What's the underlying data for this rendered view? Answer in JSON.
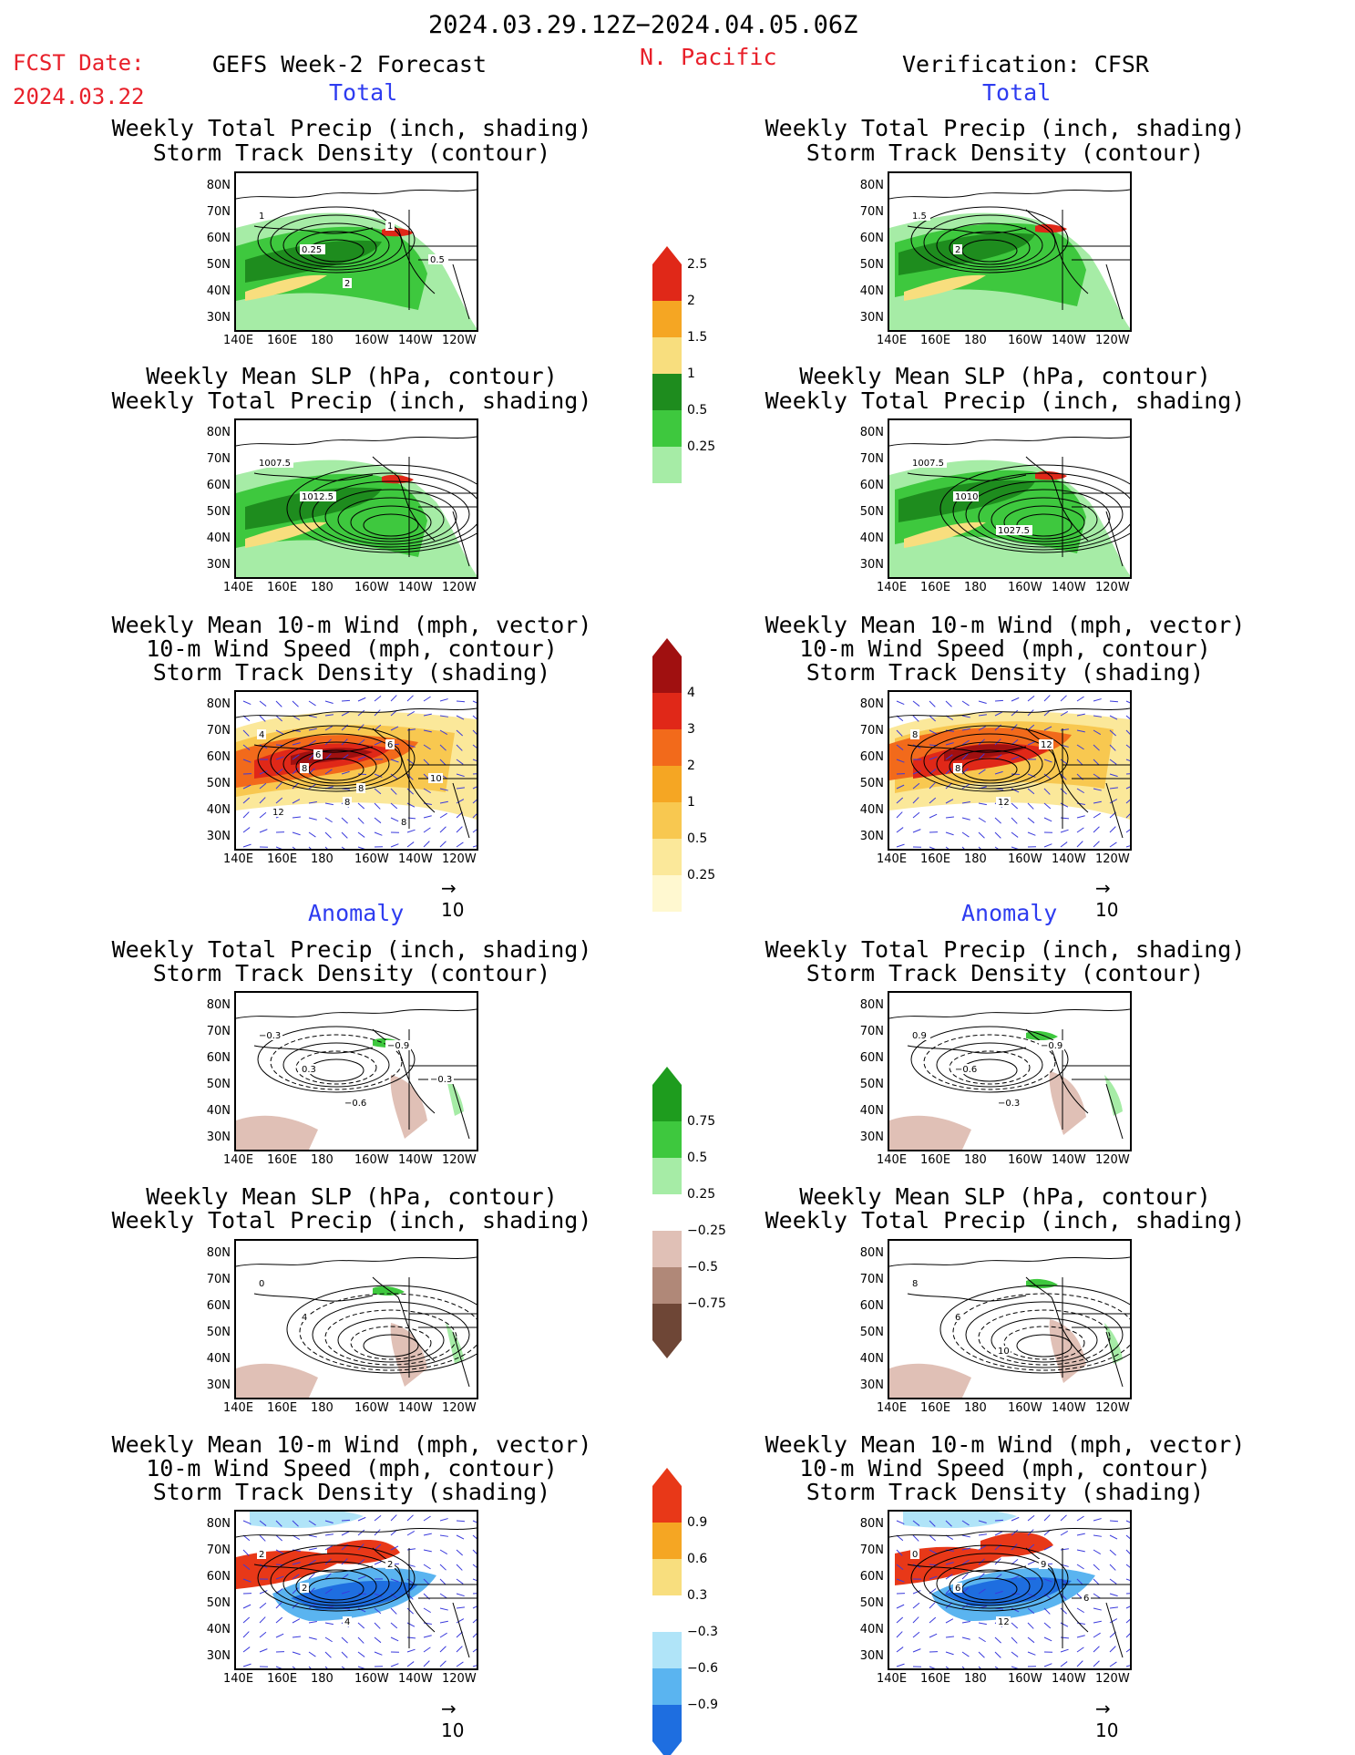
{
  "header": {
    "date_range": "2024.03.29.12Z−2024.04.05.06Z",
    "fcst_label": "FCST Date:",
    "fcst_date": "2024.03.22",
    "left_title": "GEFS Week-2 Forecast",
    "region": "N. Pacific",
    "right_title": "Verification: CFSR"
  },
  "sections": {
    "total": "Total",
    "anomaly": "Anomaly"
  },
  "panel_titles": {
    "precip_track": [
      "Weekly Total Precip (inch, shading)",
      "Storm Track Density (contour)"
    ],
    "slp_precip": [
      "Weekly Mean SLP (hPa, contour)",
      "Weekly Total Precip (inch, shading)"
    ],
    "wind_track": [
      "Weekly Mean 10-m Wind (mph, vector)",
      "10-m Wind Speed (mph, contour)",
      "Storm Track Density (shading)"
    ]
  },
  "axes": {
    "lat_labels": [
      "80N",
      "70N",
      "60N",
      "50N",
      "40N",
      "30N"
    ],
    "lon_labels": [
      "140E",
      "160E",
      "180",
      "160W",
      "140W",
      "120W"
    ]
  },
  "vector_ref": "10",
  "colorbars": {
    "precip_total": {
      "labels": [
        "2.5",
        "2",
        "1.5",
        "1",
        "0.5",
        "0.25"
      ],
      "colors": [
        "#e02818",
        "#f5a623",
        "#f8de7e",
        "#1e8c1e",
        "#3ec83e",
        "#a6eca6"
      ]
    },
    "track_total": {
      "labels": [
        "4",
        "3",
        "2",
        "1",
        "0.5",
        "0.25"
      ],
      "colors": [
        "#a01010",
        "#e02818",
        "#f26a1b",
        "#f5a623",
        "#f8c850",
        "#fbe89a",
        "#fff8d0"
      ]
    },
    "precip_anom": {
      "labels": [
        "0.75",
        "0.5",
        "0.25",
        "−0.25",
        "−0.5",
        "−0.75"
      ],
      "colors": [
        "#1e9c1e",
        "#3ec83e",
        "#a6eca6",
        "#ffffff",
        "#e0c0b6",
        "#b08878",
        "#6e4636"
      ]
    },
    "track_anom": {
      "labels": [
        "0.9",
        "0.6",
        "0.3",
        "−0.3",
        "−0.6",
        "−0.9"
      ],
      "colors": [
        "#e83818",
        "#f5a623",
        "#f8de7e",
        "#ffffff",
        "#b0e4f8",
        "#5ab4f0",
        "#1e6ee0"
      ]
    }
  },
  "contour_labels": {
    "f_precip_total": [
      "1",
      "0.25",
      "2",
      "1",
      "0.5"
    ],
    "f_slp_total": [
      "1007.5",
      "1012.5"
    ],
    "f_wind_total": [
      "4",
      "8",
      "8",
      "6",
      "10",
      "12",
      "6",
      "8",
      "8"
    ],
    "v_precip_total": [
      "1.5",
      "2"
    ],
    "v_slp_total": [
      "1007.5",
      "1010",
      "1027.5"
    ],
    "v_wind_total": [
      "8",
      "8",
      "12",
      "12"
    ],
    "f_precip_anom": [
      "−0.3",
      "0.3",
      "−0.6",
      "−0.9",
      "−0.3"
    ],
    "f_slp_anom": [
      "0",
      "4"
    ],
    "f_wind_anom": [
      "2",
      "2",
      "4",
      "2"
    ],
    "v_precip_anom": [
      "0.9",
      "−0.6",
      "−0.3",
      "−0.9"
    ],
    "v_slp_anom": [
      "8",
      "6",
      "10"
    ],
    "v_wind_anom": [
      "0",
      "6",
      "12",
      "9",
      "6"
    ]
  }
}
